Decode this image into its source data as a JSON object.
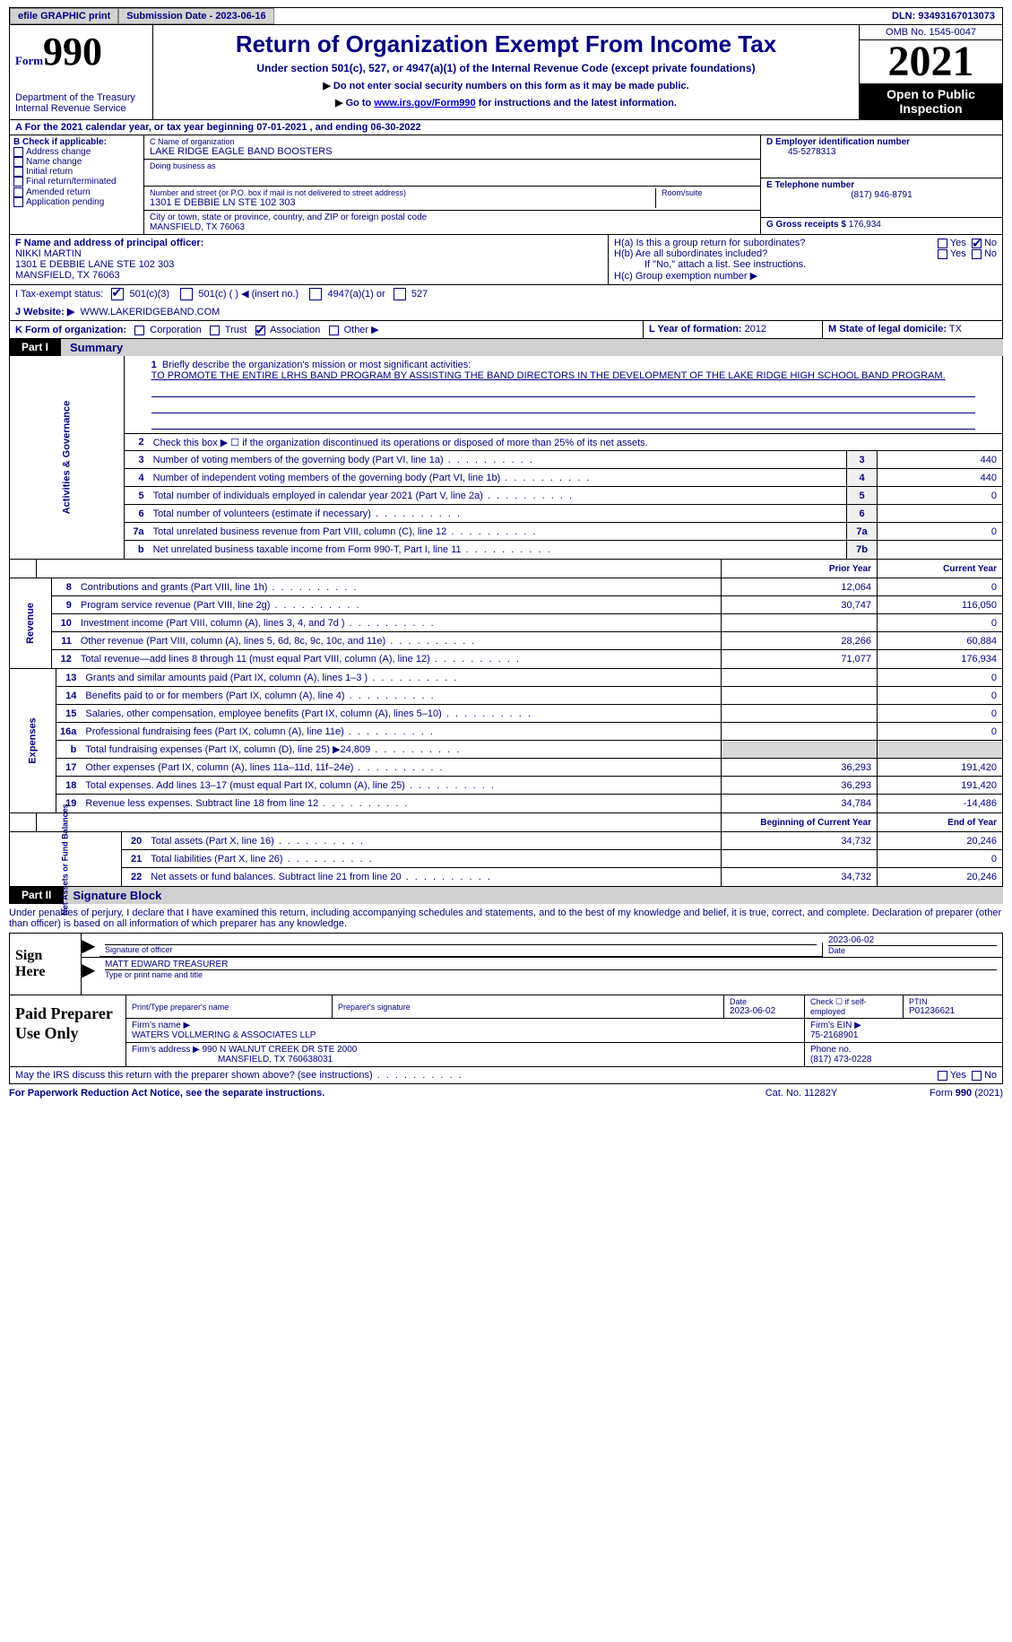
{
  "colors": {
    "ink": "#000080",
    "black": "#000000",
    "shade": "#d9d9d9",
    "btn": "#d3d3d3"
  },
  "topbar": {
    "efile": "efile GRAPHIC print",
    "submission_label": "Submission Date - 2023-06-16",
    "dln_label": "DLN: 93493167013073"
  },
  "header": {
    "form_small": "Form",
    "form_big": "990",
    "dept": "Department of the Treasury\nInternal Revenue Service",
    "title": "Return of Organization Exempt From Income Tax",
    "subtitle": "Under section 501(c), 527, or 4947(a)(1) of the Internal Revenue Code (except private foundations)",
    "note1": "Do not enter social security numbers on this form as it may be made public.",
    "note2_pre": "Go to ",
    "note2_link": "www.irs.gov/Form990",
    "note2_post": " for instructions and the latest information.",
    "omb": "OMB No. 1545-0047",
    "year": "2021",
    "open": "Open to Public Inspection"
  },
  "rowA": "A For the 2021 calendar year, or tax year beginning 07-01-2021   , and ending 06-30-2022",
  "colB": {
    "header": "B Check if applicable:",
    "items": [
      "Address change",
      "Name change",
      "Initial return",
      "Final return/terminated",
      "Amended return",
      "Application pending"
    ]
  },
  "colC": {
    "name_label": "C Name of organization",
    "name": "LAKE RIDGE EAGLE BAND BOOSTERS",
    "dba_label": "Doing business as",
    "dba": "",
    "street_label": "Number and street (or P.O. box if mail is not delivered to street address)",
    "street": "1301 E DEBBIE LN STE 102 303",
    "room_label": "Room/suite",
    "room": "",
    "city_label": "City or town, state or province, country, and ZIP or foreign postal code",
    "city": "MANSFIELD, TX  76063"
  },
  "colD": {
    "ein_label": "D Employer identification number",
    "ein": "45-5278313",
    "tel_label": "E Telephone number",
    "tel": "(817) 946-8791",
    "gross_label": "G Gross receipts $",
    "gross": "176,934"
  },
  "rowF": {
    "f_label": "F Name and address of principal officer:",
    "f_name": "NIKKI MARTIN",
    "f_addr1": "1301 E DEBBIE LANE STE 102 303",
    "f_addr2": "MANSFIELD, TX  76063",
    "ha": "H(a)  Is this a group return for subordinates?",
    "hb": "H(b)  Are all subordinates included?",
    "hb_note": "If \"No,\" attach a list. See instructions.",
    "hc": "H(c)  Group exemption number ▶"
  },
  "rowI": {
    "label": "I   Tax-exempt status:",
    "opt1": "501(c)(3)",
    "opt2": "501(c) (  ) ◀ (insert no.)",
    "opt3": "4947(a)(1) or",
    "opt4": "527"
  },
  "rowJ": {
    "label": "J   Website: ▶",
    "val": "WWW.LAKERIDGEBAND.COM"
  },
  "rowK": {
    "label": "K Form of organization:",
    "opts": [
      "Corporation",
      "Trust",
      "Association",
      "Other ▶"
    ],
    "checked_idx": 2,
    "l_label": "L Year of formation:",
    "l_val": "2012",
    "m_label": "M State of legal domicile:",
    "m_val": "TX"
  },
  "parts": {
    "p1": "Part I",
    "p1_title": "Summary",
    "p2": "Part II",
    "p2_title": "Signature Block"
  },
  "summary": {
    "line1_label": "Briefly describe the organization's mission or most significant activities:",
    "line1_text": "TO PROMOTE THE ENTIRE LRHS BAND PROGRAM BY ASSISTING THE BAND DIRECTORS IN THE DEVELOPMENT OF THE LAKE RIDGE HIGH SCHOOL BAND PROGRAM.",
    "line2": "Check this box ▶ ☐ if the organization discontinued its operations or disposed of more than 25% of its net assets.",
    "lines_gov": [
      {
        "n": "3",
        "t": "Number of voting members of the governing body (Part VI, line 1a)",
        "box": "3",
        "v": "440"
      },
      {
        "n": "4",
        "t": "Number of independent voting members of the governing body (Part VI, line 1b)",
        "box": "4",
        "v": "440"
      },
      {
        "n": "5",
        "t": "Total number of individuals employed in calendar year 2021 (Part V, line 2a)",
        "box": "5",
        "v": "0"
      },
      {
        "n": "6",
        "t": "Total number of volunteers (estimate if necessary)",
        "box": "6",
        "v": ""
      },
      {
        "n": "7a",
        "t": "Total unrelated business revenue from Part VIII, column (C), line 12",
        "box": "7a",
        "v": "0"
      },
      {
        "n": "b",
        "t": "Net unrelated business taxable income from Form 990-T, Part I, line 11",
        "box": "7b",
        "v": ""
      }
    ],
    "col_prior": "Prior Year",
    "col_current": "Current Year",
    "lines_rev": [
      {
        "n": "8",
        "t": "Contributions and grants (Part VIII, line 1h)",
        "p": "12,064",
        "c": "0"
      },
      {
        "n": "9",
        "t": "Program service revenue (Part VIII, line 2g)",
        "p": "30,747",
        "c": "116,050"
      },
      {
        "n": "10",
        "t": "Investment income (Part VIII, column (A), lines 3, 4, and 7d )",
        "p": "",
        "c": "0"
      },
      {
        "n": "11",
        "t": "Other revenue (Part VIII, column (A), lines 5, 6d, 8c, 9c, 10c, and 11e)",
        "p": "28,266",
        "c": "60,884"
      },
      {
        "n": "12",
        "t": "Total revenue—add lines 8 through 11 (must equal Part VIII, column (A), line 12)",
        "p": "71,077",
        "c": "176,934"
      }
    ],
    "lines_exp": [
      {
        "n": "13",
        "t": "Grants and similar amounts paid (Part IX, column (A), lines 1–3 )",
        "p": "",
        "c": "0"
      },
      {
        "n": "14",
        "t": "Benefits paid to or for members (Part IX, column (A), line 4)",
        "p": "",
        "c": "0"
      },
      {
        "n": "15",
        "t": "Salaries, other compensation, employee benefits (Part IX, column (A), lines 5–10)",
        "p": "",
        "c": "0"
      },
      {
        "n": "16a",
        "t": "Professional fundraising fees (Part IX, column (A), line 11e)",
        "p": "",
        "c": "0"
      },
      {
        "n": "b",
        "t": "Total fundraising expenses (Part IX, column (D), line 25) ▶24,809",
        "p": "shade",
        "c": "shade"
      },
      {
        "n": "17",
        "t": "Other expenses (Part IX, column (A), lines 11a–11d, 11f–24e)",
        "p": "36,293",
        "c": "191,420"
      },
      {
        "n": "18",
        "t": "Total expenses. Add lines 13–17 (must equal Part IX, column (A), line 25)",
        "p": "36,293",
        "c": "191,420"
      },
      {
        "n": "19",
        "t": "Revenue less expenses. Subtract line 18 from line 12",
        "p": "34,784",
        "c": "-14,486"
      }
    ],
    "col_begin": "Beginning of Current Year",
    "col_end": "End of Year",
    "lines_net": [
      {
        "n": "20",
        "t": "Total assets (Part X, line 16)",
        "p": "34,732",
        "c": "20,246"
      },
      {
        "n": "21",
        "t": "Total liabilities (Part X, line 26)",
        "p": "",
        "c": "0"
      },
      {
        "n": "22",
        "t": "Net assets or fund balances. Subtract line 21 from line 20",
        "p": "34,732",
        "c": "20,246"
      }
    ],
    "sidebars": {
      "gov": "Activities & Governance",
      "rev": "Revenue",
      "exp": "Expenses",
      "net": "Net Assets or\nFund Balances"
    }
  },
  "sig": {
    "decl": "Under penalties of perjury, I declare that I have examined this return, including accompanying schedules and statements, and to the best of my knowledge and belief, it is true, correct, and complete. Declaration of preparer (other than officer) is based on all information of which preparer has any knowledge.",
    "sign_here": "Sign Here",
    "sig_officer": "Signature of officer",
    "date_val": "2023-06-02",
    "date_lbl": "Date",
    "name_val": "MATT EDWARD  TREASURER",
    "name_lbl": "Type or print name and title"
  },
  "prep": {
    "label": "Paid Preparer Use Only",
    "r1": {
      "c1_hdr": "Print/Type preparer's name",
      "c1": "",
      "c2_hdr": "Preparer's signature",
      "c2": "",
      "c3_hdr": "Date",
      "c3": "2023-06-02",
      "c4_hdr": "Check ☐ if self-employed",
      "c5_hdr": "PTIN",
      "c5": "P01236621"
    },
    "r2": {
      "l": "Firm's name    ▶",
      "v": "WATERS VOLLMERING & ASSOCIATES LLP",
      "r_l": "Firm's EIN ▶",
      "r_v": "75-2168901"
    },
    "r3": {
      "l": "Firm's address ▶",
      "v1": "990 N WALNUT CREEK DR STE 2000",
      "v2": "MANSFIELD, TX  760638031",
      "r_l": "Phone no.",
      "r_v": "(817) 473-0228"
    }
  },
  "discuss": {
    "q": "May the IRS discuss this return with the preparer shown above? (see instructions)",
    "yes": "Yes",
    "no": "No"
  },
  "footer": {
    "l": "For Paperwork Reduction Act Notice, see the separate instructions.",
    "c": "Cat. No. 11282Y",
    "r": "Form 990 (2021)"
  }
}
